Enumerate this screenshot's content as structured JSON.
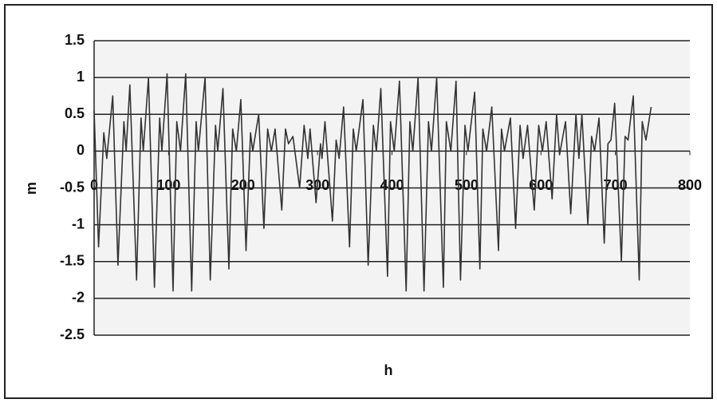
{
  "chart_data": {
    "type": "line",
    "x_label": "h",
    "y_label": "m",
    "x": [
      0,
      6,
      13,
      17,
      25,
      32,
      40,
      43,
      48,
      57,
      63,
      66,
      73,
      81,
      88,
      91,
      98,
      106,
      111,
      116,
      123,
      131,
      137,
      140,
      149,
      156,
      163,
      166,
      173,
      181,
      186,
      191,
      197,
      204,
      210,
      213,
      221,
      228,
      233,
      238,
      243,
      252,
      257,
      261,
      267,
      276,
      282,
      287,
      290,
      298,
      304,
      306,
      310,
      320,
      325,
      329,
      335,
      343,
      348,
      352,
      361,
      368,
      375,
      379,
      385,
      394,
      398,
      403,
      410,
      419,
      424,
      428,
      435,
      443,
      449,
      453,
      460,
      469,
      473,
      479,
      486,
      492,
      498,
      502,
      511,
      518,
      522,
      527,
      534,
      543,
      547,
      551,
      559,
      566,
      572,
      576,
      582,
      591,
      597,
      602,
      607,
      615,
      621,
      625,
      633,
      640,
      647,
      651,
      655,
      663,
      668,
      672,
      678,
      685,
      690,
      694,
      699,
      708,
      713,
      717,
      724,
      732,
      736,
      741,
      748
    ],
    "series": [
      {
        "color": "#333333",
        "values": [
          0.55,
          -1.3,
          0.25,
          -0.1,
          0.75,
          -1.55,
          0.4,
          0,
          0.9,
          -1.75,
          0.45,
          0,
          1.0,
          -1.85,
          0.45,
          0,
          1.05,
          -1.9,
          0.4,
          0,
          1.05,
          -1.9,
          0.4,
          0,
          1.0,
          -1.75,
          0.35,
          0,
          0.85,
          -1.6,
          0.3,
          0,
          0.7,
          -1.35,
          0.25,
          0,
          0.5,
          -1.05,
          0.3,
          0,
          0.3,
          -0.8,
          0.3,
          0.1,
          0.2,
          -0.5,
          0.35,
          -0.1,
          0.3,
          -0.7,
          0.1,
          -0.1,
          0.4,
          -0.95,
          0.15,
          -0.1,
          0.6,
          -1.3,
          0.3,
          0,
          0.7,
          -1.55,
          0.35,
          0,
          0.85,
          -1.7,
          0.4,
          0,
          0.95,
          -1.9,
          0.4,
          0,
          1.0,
          -1.9,
          0.4,
          0,
          1.0,
          -1.85,
          0.4,
          0,
          0.95,
          -1.75,
          0.35,
          0,
          0.8,
          -1.6,
          0.3,
          0,
          0.6,
          -1.35,
          0.3,
          0,
          0.45,
          -1.05,
          0.35,
          -0.1,
          0.35,
          -0.8,
          0.35,
          0,
          0.4,
          -0.65,
          0.5,
          -0.05,
          0.4,
          -0.85,
          0.5,
          -0.1,
          0.5,
          -1.0,
          0.2,
          0,
          0.45,
          -1.25,
          0.1,
          0.15,
          0.65,
          -1.5,
          0.2,
          0.15,
          0.75,
          -1.75,
          0.4,
          0.15,
          0.6
        ]
      }
    ],
    "xlim": [
      0,
      800
    ],
    "xticks": [
      0,
      100,
      200,
      300,
      400,
      500,
      600,
      700,
      800
    ],
    "ylim": [
      -2.5,
      1.5
    ],
    "yticks": [
      1.5,
      1,
      0.5,
      0,
      -0.5,
      -1,
      -1.5,
      -2,
      -2.5
    ],
    "grid": true
  }
}
